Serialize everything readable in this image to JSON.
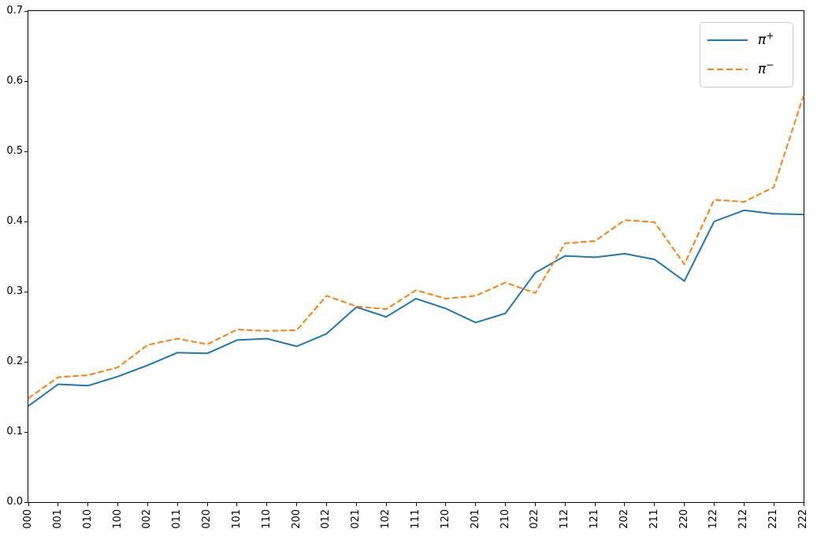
{
  "figure": {
    "background": "#ffffff",
    "spine_color": "#000000",
    "tick_color": "#000000"
  },
  "legend": {
    "position": "upper right",
    "border_color": "#cccccc",
    "items": [
      {
        "label": "π⁺",
        "base": "π",
        "sup": "+",
        "color": "#1f77b4",
        "style": "solid"
      },
      {
        "label": "π⁻",
        "base": "π",
        "sup": "−",
        "color": "#ff7f0e",
        "style": "dashed"
      }
    ]
  },
  "chart_data": {
    "type": "line",
    "title": "",
    "xlabel": "",
    "ylabel": "",
    "grid": false,
    "legend_position": "upper right",
    "ylim": [
      0.0,
      0.7
    ],
    "yticks": [
      "0.0",
      "0.1",
      "0.2",
      "0.3",
      "0.4",
      "0.5",
      "0.6",
      "0.7"
    ],
    "categories": [
      "000",
      "001",
      "010",
      "100",
      "002",
      "011",
      "020",
      "101",
      "110",
      "200",
      "012",
      "021",
      "102",
      "111",
      "120",
      "201",
      "210",
      "022",
      "112",
      "121",
      "202",
      "211",
      "220",
      "122",
      "212",
      "221",
      "222"
    ],
    "series": [
      {
        "name": "π⁺",
        "id": "pi-plus",
        "color": "#1f77b4",
        "style": "solid",
        "values": [
          0.137,
          0.168,
          0.166,
          0.179,
          0.195,
          0.213,
          0.212,
          0.231,
          0.233,
          0.222,
          0.24,
          0.278,
          0.264,
          0.29,
          0.276,
          0.256,
          0.269,
          0.327,
          0.351,
          0.349,
          0.354,
          0.346,
          0.315,
          0.4,
          0.416,
          0.411,
          0.41
        ]
      },
      {
        "name": "π⁻",
        "id": "pi-minus",
        "color": "#ff7f0e",
        "style": "dashed",
        "values": [
          0.148,
          0.178,
          0.181,
          0.192,
          0.224,
          0.233,
          0.225,
          0.246,
          0.244,
          0.245,
          0.294,
          0.279,
          0.275,
          0.302,
          0.29,
          0.294,
          0.313,
          0.298,
          0.369,
          0.372,
          0.402,
          0.399,
          0.339,
          0.431,
          0.428,
          0.449,
          0.58
        ]
      }
    ]
  }
}
